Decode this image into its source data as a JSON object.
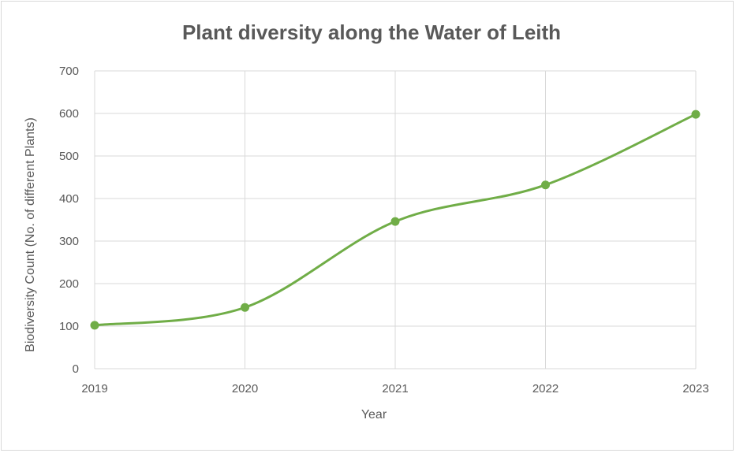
{
  "chart_data": {
    "type": "line",
    "title": "Plant diversity along the Water of Leith",
    "xlabel": "Year",
    "ylabel": "Biodiversity Count (No. of different Plants)",
    "categories": [
      "2019",
      "2020",
      "2021",
      "2022",
      "2023"
    ],
    "series": [
      {
        "values": [
          102,
          144,
          346,
          432,
          598
        ]
      }
    ],
    "ylim": [
      0,
      700
    ],
    "yticks": [
      "0",
      "100",
      "200",
      "300",
      "400",
      "500",
      "600",
      "700"
    ],
    "grid": true,
    "smooth": true,
    "line_color": "#70AD47"
  }
}
